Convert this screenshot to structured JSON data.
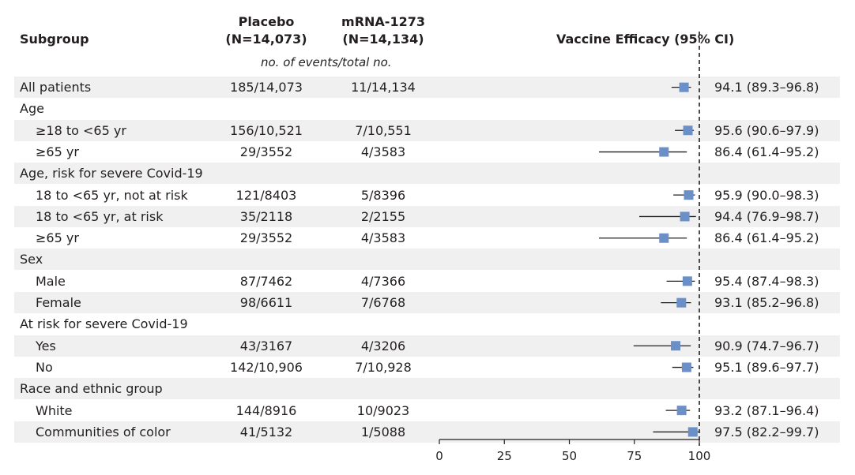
{
  "header": {
    "subgroup": "Subgroup",
    "placebo_line1": "Placebo",
    "placebo_line2": "(N=14,073)",
    "mrna_line1": "mRNA-1273",
    "mrna_line2": "(N=14,134)",
    "events_note": "no. of events/total no.",
    "efficacy": "Vaccine Efficacy (95% CI)"
  },
  "colors": {
    "marker": "#6b8fc7",
    "band": "#f0f0f0",
    "text": "#231f20"
  },
  "rows": [
    {
      "label": "All patients",
      "indent": false,
      "placebo": "185/14,073",
      "mrna": "11/14,134",
      "ve_text": "94.1 (89.3–96.8)",
      "ve": 94.1,
      "lo": 89.3,
      "hi": 96.8
    },
    {
      "label": "Age",
      "indent": false,
      "header": true
    },
    {
      "label": "≥18 to <65 yr",
      "indent": true,
      "placebo": "156/10,521",
      "mrna": "7/10,551",
      "ve_text": "95.6 (90.6–97.9)",
      "ve": 95.6,
      "lo": 90.6,
      "hi": 97.9
    },
    {
      "label": "≥65 yr",
      "indent": true,
      "placebo": "29/3552",
      "mrna": "4/3583",
      "ve_text": "86.4 (61.4–95.2)",
      "ve": 86.4,
      "lo": 61.4,
      "hi": 95.2
    },
    {
      "label": "Age, risk for severe Covid-19",
      "indent": false,
      "header": true
    },
    {
      "label": "18 to <65 yr, not at risk",
      "indent": true,
      "placebo": "121/8403",
      "mrna": "5/8396",
      "ve_text": "95.9 (90.0–98.3)",
      "ve": 95.9,
      "lo": 90.0,
      "hi": 98.3
    },
    {
      "label": "18 to <65 yr, at risk",
      "indent": true,
      "placebo": "35/2118",
      "mrna": "2/2155",
      "ve_text": "94.4 (76.9–98.7)",
      "ve": 94.4,
      "lo": 76.9,
      "hi": 98.7
    },
    {
      "label": "≥65 yr",
      "indent": true,
      "placebo": "29/3552",
      "mrna": "4/3583",
      "ve_text": "86.4 (61.4–95.2)",
      "ve": 86.4,
      "lo": 61.4,
      "hi": 95.2
    },
    {
      "label": "Sex",
      "indent": false,
      "header": true
    },
    {
      "label": "Male",
      "indent": true,
      "placebo": "87/7462",
      "mrna": "4/7366",
      "ve_text": "95.4 (87.4–98.3)",
      "ve": 95.4,
      "lo": 87.4,
      "hi": 98.3
    },
    {
      "label": "Female",
      "indent": true,
      "placebo": "98/6611",
      "mrna": "7/6768",
      "ve_text": "93.1 (85.2–96.8)",
      "ve": 93.1,
      "lo": 85.2,
      "hi": 96.8
    },
    {
      "label": "At risk for severe Covid-19",
      "indent": false,
      "header": true
    },
    {
      "label": "Yes",
      "indent": true,
      "placebo": "43/3167",
      "mrna": "4/3206",
      "ve_text": "90.9 (74.7–96.7)",
      "ve": 90.9,
      "lo": 74.7,
      "hi": 96.7
    },
    {
      "label": "No",
      "indent": true,
      "placebo": "142/10,906",
      "mrna": "7/10,928",
      "ve_text": "95.1 (89.6–97.7)",
      "ve": 95.1,
      "lo": 89.6,
      "hi": 97.7
    },
    {
      "label": "Race and ethnic group",
      "indent": false,
      "header": true
    },
    {
      "label": "White",
      "indent": true,
      "placebo": "144/8916",
      "mrna": "10/9023",
      "ve_text": "93.2 (87.1–96.4)",
      "ve": 93.2,
      "lo": 87.1,
      "hi": 96.4
    },
    {
      "label": "Communities of color",
      "indent": true,
      "placebo": "41/5132",
      "mrna": "1/5088",
      "ve_text": "97.5 (82.2–99.7)",
      "ve": 97.5,
      "lo": 82.2,
      "hi": 99.7
    }
  ],
  "chart_data": {
    "type": "forest",
    "xlabel": "",
    "xlim": [
      0,
      100
    ],
    "xticks": [
      "0",
      "25",
      "50",
      "75",
      "100"
    ],
    "reference_line": 100,
    "points": [
      {
        "label": "All patients",
        "ve": 94.1,
        "lo": 89.3,
        "hi": 96.8
      },
      {
        "label": "≥18 to <65 yr",
        "ve": 95.6,
        "lo": 90.6,
        "hi": 97.9
      },
      {
        "label": "≥65 yr",
        "ve": 86.4,
        "lo": 61.4,
        "hi": 95.2
      },
      {
        "label": "18 to <65 yr, not at risk",
        "ve": 95.9,
        "lo": 90.0,
        "hi": 98.3
      },
      {
        "label": "18 to <65 yr, at risk",
        "ve": 94.4,
        "lo": 76.9,
        "hi": 98.7
      },
      {
        "label": "≥65 yr",
        "ve": 86.4,
        "lo": 61.4,
        "hi": 95.2
      },
      {
        "label": "Male",
        "ve": 95.4,
        "lo": 87.4,
        "hi": 98.3
      },
      {
        "label": "Female",
        "ve": 93.1,
        "lo": 85.2,
        "hi": 96.8
      },
      {
        "label": "Yes",
        "ve": 90.9,
        "lo": 74.7,
        "hi": 96.7
      },
      {
        "label": "No",
        "ve": 95.1,
        "lo": 89.6,
        "hi": 97.7
      },
      {
        "label": "White",
        "ve": 93.2,
        "lo": 87.1,
        "hi": 96.4
      },
      {
        "label": "Communities of color",
        "ve": 97.5,
        "lo": 82.2,
        "hi": 99.7
      }
    ]
  }
}
